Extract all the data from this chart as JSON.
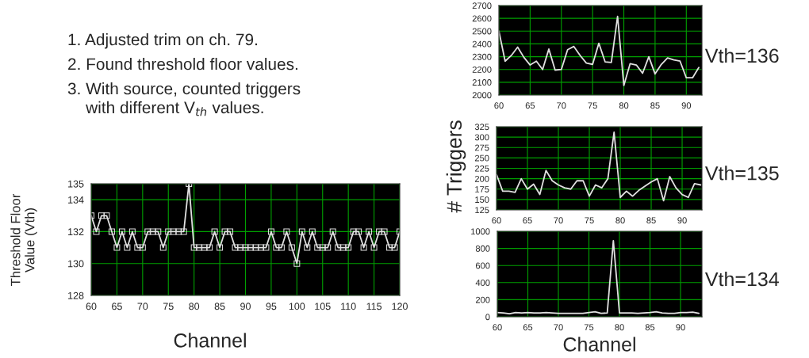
{
  "chart_data": [
    {
      "type": "line",
      "xlabel": "Channel",
      "ylabel": "Threshold Floor\nValue (Vth)",
      "annotations": [
        "1. Adjusted trim on ch. 79.",
        "2. Found threshold floor values.",
        "3. With source, counted triggers\n    with different V$_{th}$ values."
      ],
      "marker": "square",
      "grid": true,
      "color": "#e0e0e0",
      "x": [
        60,
        61,
        62,
        63,
        64,
        65,
        66,
        67,
        68,
        69,
        70,
        71,
        72,
        73,
        74,
        75,
        76,
        77,
        78,
        79,
        80,
        81,
        82,
        83,
        84,
        85,
        86,
        87,
        88,
        89,
        90,
        91,
        92,
        93,
        94,
        95,
        96,
        97,
        98,
        99,
        100,
        101,
        102,
        103,
        104,
        105,
        106,
        107,
        108,
        109,
        110,
        111,
        112,
        113,
        114,
        115,
        116,
        117,
        118,
        119,
        120
      ],
      "values": [
        133,
        132,
        133,
        133,
        132,
        131,
        132,
        131,
        132,
        131,
        131,
        132,
        132,
        132,
        131,
        132,
        132,
        132,
        132,
        135,
        131,
        131,
        131,
        131,
        132,
        131,
        132,
        132,
        131,
        131,
        131,
        131,
        131,
        131,
        131,
        132,
        131,
        131,
        132,
        131,
        130,
        132,
        131,
        132,
        131,
        131,
        131,
        132,
        131,
        131,
        131,
        132,
        132,
        131,
        132,
        131,
        132,
        132,
        131,
        131,
        132
      ],
      "xlim": [
        60,
        120
      ],
      "xticks": [
        60,
        65,
        70,
        75,
        80,
        85,
        90,
        95,
        100,
        105,
        110,
        115,
        120
      ],
      "ylim": [
        128,
        135
      ],
      "yticks": [
        128,
        130,
        132,
        134,
        135
      ]
    },
    {
      "type": "line",
      "annotations": [
        "Vth=136"
      ],
      "grid": true,
      "color": "#e0e0e0",
      "x": [
        60,
        61,
        62,
        63,
        64,
        65,
        66,
        67,
        68,
        69,
        70,
        71,
        72,
        73,
        74,
        75,
        76,
        77,
        78,
        79,
        80,
        81,
        82,
        83,
        84,
        85,
        86,
        87,
        88,
        89,
        90,
        91,
        92
      ],
      "values": [
        2500,
        2265,
        2310,
        2375,
        2295,
        2235,
        2265,
        2200,
        2360,
        2195,
        2200,
        2355,
        2380,
        2310,
        2250,
        2240,
        2405,
        2260,
        2255,
        2615,
        2075,
        2245,
        2235,
        2170,
        2300,
        2165,
        2240,
        2290,
        2275,
        2265,
        2135,
        2135,
        2215
      ],
      "xlim": [
        60,
        92.5
      ],
      "xticks": [
        60,
        65,
        70,
        75,
        80,
        85,
        90
      ],
      "ylim": [
        2000,
        2700
      ],
      "yticks": [
        2000,
        2100,
        2200,
        2300,
        2400,
        2500,
        2600,
        2700
      ]
    },
    {
      "type": "line",
      "ylabel": "# Triggers",
      "annotations": [
        "Vth=135"
      ],
      "grid": true,
      "color": "#e0e0e0",
      "x": [
        60,
        61,
        62,
        63,
        64,
        65,
        66,
        67,
        68,
        69,
        70,
        71,
        72,
        73,
        74,
        75,
        76,
        77,
        78,
        79,
        80,
        81,
        82,
        83,
        84,
        85,
        86,
        87,
        88,
        89,
        90,
        91,
        92,
        93
      ],
      "values": [
        210,
        170,
        170,
        167,
        200,
        175,
        187,
        162,
        220,
        195,
        185,
        178,
        175,
        195,
        195,
        158,
        185,
        178,
        200,
        312,
        155,
        170,
        158,
        172,
        182,
        192,
        200,
        147,
        205,
        178,
        162,
        155,
        188,
        185
      ],
      "xlim": [
        60,
        93.2
      ],
      "xticks": [
        60,
        65,
        70,
        75,
        80,
        85,
        90
      ],
      "ylim": [
        125,
        325
      ],
      "yticks": [
        125,
        150,
        175,
        200,
        225,
        250,
        275,
        300,
        325
      ]
    },
    {
      "type": "line",
      "xlabel": "Channel",
      "annotations": [
        "Vth=134"
      ],
      "grid": true,
      "color": "#e0e0e0",
      "x": [
        60,
        61,
        62,
        63,
        64,
        65,
        66,
        67,
        68,
        69,
        70,
        71,
        72,
        73,
        74,
        75,
        76,
        77,
        78,
        79,
        80,
        81,
        82,
        83,
        84,
        85,
        86,
        87,
        88,
        89,
        90,
        91,
        92,
        93
      ],
      "values": [
        50,
        45,
        35,
        50,
        45,
        50,
        45,
        45,
        50,
        45,
        40,
        40,
        40,
        40,
        40,
        50,
        60,
        40,
        45,
        890,
        45,
        45,
        45,
        40,
        45,
        50,
        60,
        45,
        40,
        40,
        50,
        50,
        55,
        40
      ],
      "xlim": [
        60,
        93.5
      ],
      "xticks": [
        60,
        65,
        70,
        75,
        80,
        85,
        90
      ],
      "ylim": [
        0,
        1000
      ],
      "yticks": [
        0,
        200,
        400,
        600,
        800,
        1000
      ]
    }
  ]
}
